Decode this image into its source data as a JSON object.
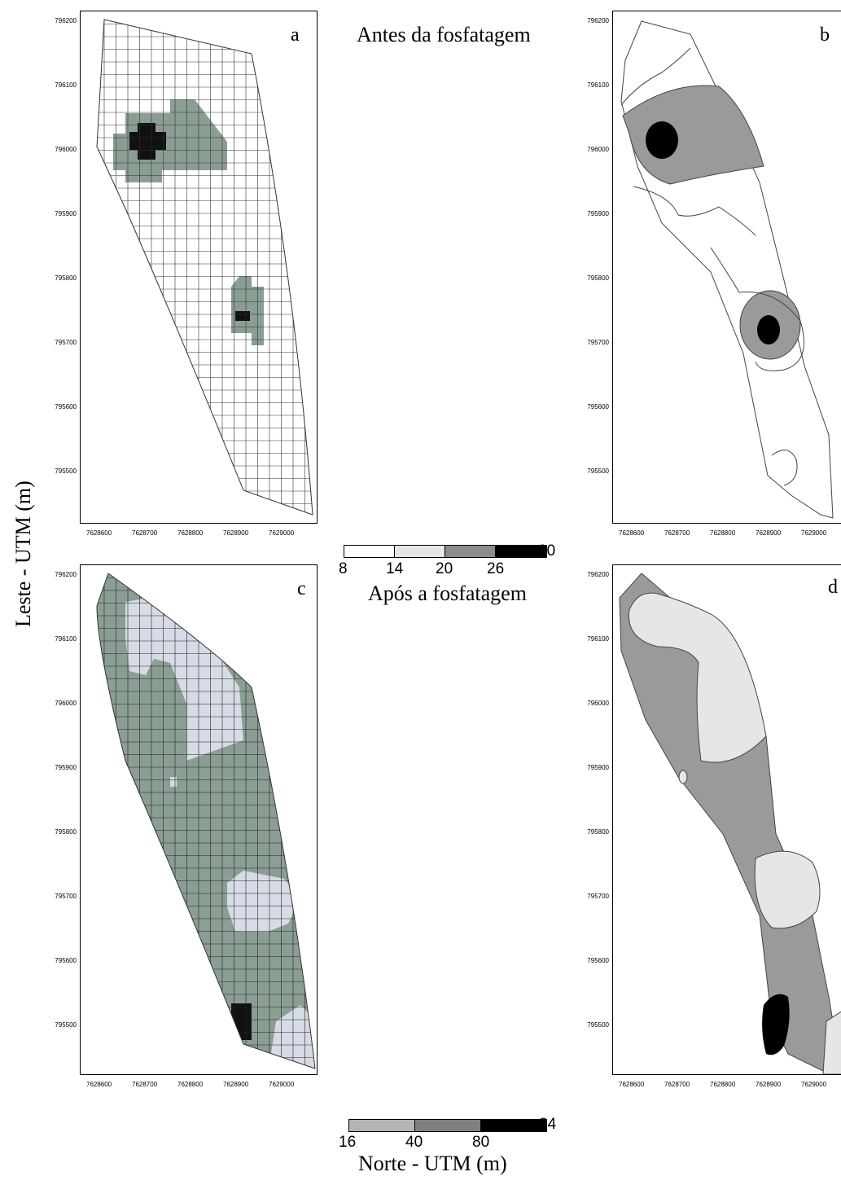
{
  "captions": {
    "before": "Antes da fosfatagem",
    "after": "Após a fosfatagem"
  },
  "panel_letters": {
    "a": "a",
    "b": "b",
    "c": "c",
    "d": "d"
  },
  "y_ticks": [
    "796200",
    "796100",
    "796000",
    "795900",
    "795800",
    "795700",
    "795600",
    "795500"
  ],
  "x_ticks": [
    "7628600",
    "7628700",
    "7628800",
    "7628900",
    "7629000"
  ],
  "axis_titles": {
    "y": "Leste - UTM (m)",
    "x": "Norte - UTM (m)"
  },
  "legend_top": {
    "labels": [
      "8",
      "14",
      "20",
      "26",
      "30"
    ],
    "colors": [
      "#ffffff",
      "#e6e6e6",
      "#8c8c8c",
      "#000000"
    ]
  },
  "legend_bottom": {
    "labels": [
      "16",
      "40",
      "80",
      "84"
    ],
    "colors": [
      "#b4b4b4",
      "#808080",
      "#000000"
    ]
  },
  "colors": {
    "grid_fill": "#8a9e94",
    "grid_light": "#d6dbe6",
    "contour_mid": "#9a9a9a",
    "contour_light": "#e6e6e6",
    "black": "#000000"
  }
}
